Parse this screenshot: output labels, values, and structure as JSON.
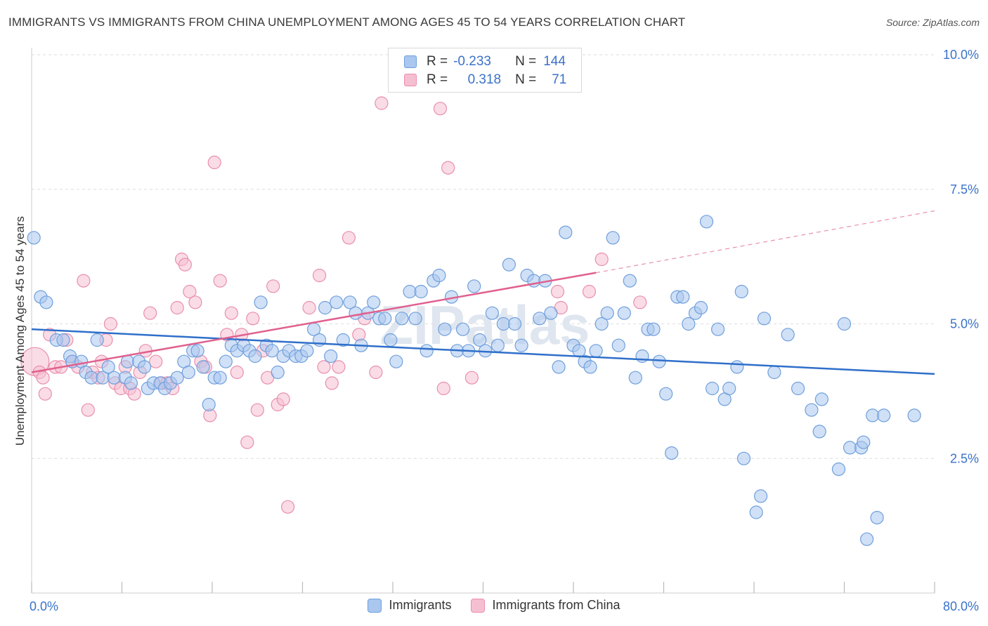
{
  "title": "IMMIGRANTS VS IMMIGRANTS FROM CHINA UNEMPLOYMENT AMONG AGES 45 TO 54 YEARS CORRELATION CHART",
  "source": "Source: ZipAtlas.com",
  "watermark": "ZIPatlas",
  "legend": {
    "rows": [
      {
        "r_label": "R =",
        "r_value": "-0.233",
        "n_label": "N =",
        "n_value": "144"
      },
      {
        "r_label": "R =",
        "r_value": "0.318",
        "n_label": "N =",
        "n_value": "71"
      }
    ]
  },
  "bottom_legend": [
    "Immigrants",
    "Immigrants from China"
  ],
  "colors": {
    "blue_fill": "#a9c7ef",
    "blue_stroke": "#6f9fdc",
    "blue_line": "#2f6fca",
    "pink_fill": "#f6bfd1",
    "pink_stroke": "#e98eac",
    "pink_line": "#e0608e",
    "axis_text": "#3a72c9",
    "grid": "#dddddd"
  },
  "chart_data": {
    "type": "scatter",
    "title": "IMMIGRANTS VS IMMIGRANTS FROM CHINA UNEMPLOYMENT AMONG AGES 45 TO 54 YEARS CORRELATION CHART",
    "xlabel": "",
    "ylabel": "Unemployment Among Ages 45 to 54 years",
    "xlim": [
      0,
      80
    ],
    "ylim": [
      0,
      10
    ],
    "x_tick_labels": [
      "0.0%",
      "80.0%"
    ],
    "y_ticks": [
      2.5,
      5.0,
      7.5,
      10.0
    ],
    "y_tick_labels": [
      "2.5%",
      "5.0%",
      "7.5%",
      "10.0%"
    ],
    "grid": "horizontal dashed",
    "legend_position": "top-center",
    "series": [
      {
        "name": "Immigrants",
        "r": -0.233,
        "n": 144,
        "trend": {
          "x0": 0,
          "y0": 4.9,
          "x1": 80,
          "y1": 4.07
        },
        "points": [
          [
            0.2,
            6.6
          ],
          [
            0.8,
            5.5
          ],
          [
            1.3,
            5.4
          ],
          [
            2.2,
            4.7
          ],
          [
            2.8,
            4.7
          ],
          [
            3.4,
            4.4
          ],
          [
            3.6,
            4.3
          ],
          [
            4.4,
            4.3
          ],
          [
            4.8,
            4.1
          ],
          [
            5.3,
            4.0
          ],
          [
            5.8,
            4.7
          ],
          [
            6.3,
            4.0
          ],
          [
            6.8,
            4.2
          ],
          [
            7.3,
            4.0
          ],
          [
            8.3,
            4.0
          ],
          [
            8.5,
            4.3
          ],
          [
            8.8,
            3.9
          ],
          [
            9.5,
            4.3
          ],
          [
            10.0,
            4.2
          ],
          [
            10.3,
            3.8
          ],
          [
            10.8,
            3.9
          ],
          [
            11.4,
            3.9
          ],
          [
            11.8,
            3.8
          ],
          [
            12.3,
            3.9
          ],
          [
            12.9,
            4.0
          ],
          [
            13.5,
            4.3
          ],
          [
            13.9,
            4.1
          ],
          [
            14.3,
            4.5
          ],
          [
            14.7,
            4.5
          ],
          [
            15.2,
            4.2
          ],
          [
            15.7,
            3.5
          ],
          [
            16.2,
            4.0
          ],
          [
            16.7,
            4.0
          ],
          [
            17.2,
            4.3
          ],
          [
            17.7,
            4.6
          ],
          [
            18.2,
            4.5
          ],
          [
            18.8,
            4.6
          ],
          [
            19.3,
            4.5
          ],
          [
            19.8,
            4.4
          ],
          [
            20.3,
            5.4
          ],
          [
            20.8,
            4.6
          ],
          [
            21.3,
            4.5
          ],
          [
            21.8,
            4.1
          ],
          [
            22.3,
            4.4
          ],
          [
            22.8,
            4.5
          ],
          [
            23.4,
            4.4
          ],
          [
            23.9,
            4.4
          ],
          [
            24.4,
            4.5
          ],
          [
            25.0,
            4.9
          ],
          [
            25.5,
            4.7
          ],
          [
            26.0,
            5.3
          ],
          [
            26.5,
            4.4
          ],
          [
            27.0,
            5.4
          ],
          [
            27.6,
            4.7
          ],
          [
            28.2,
            5.4
          ],
          [
            28.7,
            5.2
          ],
          [
            29.2,
            4.6
          ],
          [
            29.8,
            5.2
          ],
          [
            30.3,
            5.4
          ],
          [
            30.8,
            5.1
          ],
          [
            31.3,
            5.1
          ],
          [
            31.8,
            4.7
          ],
          [
            32.3,
            4.3
          ],
          [
            32.8,
            5.1
          ],
          [
            33.5,
            5.6
          ],
          [
            34.0,
            5.1
          ],
          [
            34.5,
            5.6
          ],
          [
            35.0,
            4.5
          ],
          [
            35.6,
            5.8
          ],
          [
            36.1,
            5.9
          ],
          [
            36.6,
            4.9
          ],
          [
            37.2,
            5.5
          ],
          [
            37.7,
            4.5
          ],
          [
            38.2,
            4.9
          ],
          [
            38.7,
            4.5
          ],
          [
            39.2,
            5.7
          ],
          [
            39.7,
            4.7
          ],
          [
            40.2,
            4.5
          ],
          [
            40.8,
            5.2
          ],
          [
            41.3,
            4.6
          ],
          [
            41.8,
            5.0
          ],
          [
            42.3,
            6.1
          ],
          [
            42.8,
            5.0
          ],
          [
            43.4,
            4.6
          ],
          [
            43.9,
            5.9
          ],
          [
            44.5,
            5.8
          ],
          [
            45.0,
            5.1
          ],
          [
            45.5,
            5.8
          ],
          [
            46.0,
            5.2
          ],
          [
            46.7,
            4.2
          ],
          [
            47.3,
            6.7
          ],
          [
            48.0,
            4.6
          ],
          [
            48.5,
            4.5
          ],
          [
            49.0,
            4.3
          ],
          [
            49.5,
            4.2
          ],
          [
            50.0,
            4.5
          ],
          [
            50.5,
            5.0
          ],
          [
            51.0,
            5.2
          ],
          [
            51.5,
            6.6
          ],
          [
            52.0,
            4.6
          ],
          [
            52.5,
            5.2
          ],
          [
            53.0,
            5.8
          ],
          [
            53.5,
            4.0
          ],
          [
            54.1,
            4.4
          ],
          [
            54.6,
            4.9
          ],
          [
            55.1,
            4.9
          ],
          [
            55.6,
            4.3
          ],
          [
            56.2,
            3.7
          ],
          [
            56.7,
            2.6
          ],
          [
            57.2,
            5.5
          ],
          [
            57.7,
            5.5
          ],
          [
            58.2,
            5.0
          ],
          [
            58.8,
            5.2
          ],
          [
            59.3,
            5.3
          ],
          [
            59.8,
            6.9
          ],
          [
            60.3,
            3.8
          ],
          [
            60.8,
            4.9
          ],
          [
            61.4,
            3.6
          ],
          [
            61.8,
            3.8
          ],
          [
            62.5,
            4.2
          ],
          [
            62.9,
            5.6
          ],
          [
            63.1,
            2.5
          ],
          [
            64.2,
            1.5
          ],
          [
            64.6,
            1.8
          ],
          [
            64.9,
            5.1
          ],
          [
            65.8,
            4.1
          ],
          [
            67.0,
            4.8
          ],
          [
            67.9,
            3.8
          ],
          [
            69.1,
            3.4
          ],
          [
            69.8,
            3.0
          ],
          [
            70.0,
            3.6
          ],
          [
            71.5,
            2.3
          ],
          [
            72.0,
            5.0
          ],
          [
            72.5,
            2.7
          ],
          [
            73.5,
            2.7
          ],
          [
            73.7,
            2.8
          ],
          [
            74.0,
            1.0
          ],
          [
            74.5,
            3.3
          ],
          [
            74.9,
            1.4
          ],
          [
            75.5,
            3.3
          ],
          [
            78.2,
            3.3
          ]
        ]
      },
      {
        "name": "Immigrants from China",
        "r": 0.318,
        "n": 71,
        "trend": {
          "x0": 0,
          "y0": 4.1,
          "x1": 50,
          "y1": 5.95,
          "dash_x1": 80,
          "dash_y1": 7.1
        },
        "points": [
          [
            0.3,
            4.3
          ],
          [
            0.7,
            4.1
          ],
          [
            1.0,
            4.0
          ],
          [
            1.2,
            3.7
          ],
          [
            1.6,
            4.8
          ],
          [
            2.1,
            4.2
          ],
          [
            2.6,
            4.2
          ],
          [
            3.1,
            4.7
          ],
          [
            3.6,
            4.3
          ],
          [
            4.1,
            4.2
          ],
          [
            4.6,
            5.8
          ],
          [
            5.0,
            3.4
          ],
          [
            5.4,
            4.1
          ],
          [
            5.9,
            4.0
          ],
          [
            6.2,
            4.3
          ],
          [
            6.6,
            4.7
          ],
          [
            7.0,
            5.0
          ],
          [
            7.4,
            3.9
          ],
          [
            7.9,
            3.8
          ],
          [
            8.3,
            4.2
          ],
          [
            8.7,
            3.8
          ],
          [
            9.1,
            3.7
          ],
          [
            9.6,
            4.1
          ],
          [
            10.1,
            4.5
          ],
          [
            10.5,
            5.2
          ],
          [
            11.0,
            4.3
          ],
          [
            11.5,
            3.9
          ],
          [
            12.0,
            3.9
          ],
          [
            12.5,
            3.8
          ],
          [
            12.9,
            5.3
          ],
          [
            13.3,
            6.2
          ],
          [
            13.6,
            6.1
          ],
          [
            14.0,
            5.6
          ],
          [
            14.5,
            5.4
          ],
          [
            15.0,
            4.3
          ],
          [
            15.4,
            4.2
          ],
          [
            15.8,
            3.3
          ],
          [
            16.2,
            8.0
          ],
          [
            16.7,
            5.8
          ],
          [
            17.3,
            4.8
          ],
          [
            17.7,
            5.2
          ],
          [
            18.2,
            4.1
          ],
          [
            18.6,
            4.8
          ],
          [
            19.1,
            2.8
          ],
          [
            19.6,
            5.1
          ],
          [
            20.0,
            3.4
          ],
          [
            20.5,
            4.5
          ],
          [
            20.9,
            4.0
          ],
          [
            21.4,
            5.7
          ],
          [
            21.8,
            3.5
          ],
          [
            22.3,
            3.6
          ],
          [
            22.7,
            1.6
          ],
          [
            24.6,
            5.3
          ],
          [
            25.5,
            5.9
          ],
          [
            25.9,
            4.2
          ],
          [
            26.6,
            3.9
          ],
          [
            27.2,
            4.2
          ],
          [
            28.1,
            6.6
          ],
          [
            29.0,
            4.8
          ],
          [
            29.5,
            5.1
          ],
          [
            30.5,
            4.1
          ],
          [
            31.0,
            9.1
          ],
          [
            36.2,
            9.0
          ],
          [
            36.9,
            7.9
          ],
          [
            36.5,
            3.8
          ],
          [
            39.0,
            4.0
          ],
          [
            46.6,
            5.6
          ],
          [
            49.4,
            5.6
          ],
          [
            50.5,
            6.2
          ],
          [
            53.9,
            5.4
          ],
          [
            46.9,
            5.3
          ]
        ]
      }
    ]
  }
}
